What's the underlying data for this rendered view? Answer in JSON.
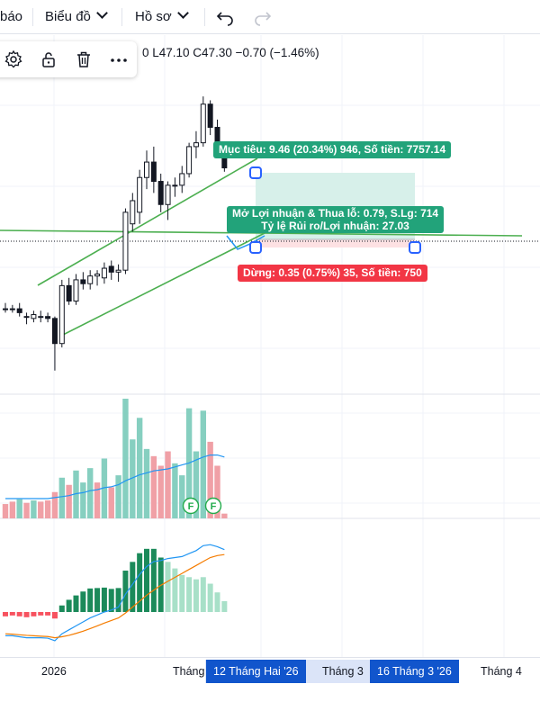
{
  "toolbar": {
    "left_partial": "báo",
    "chart_menu": "Biểu đồ",
    "profile_menu": "Hồ sơ",
    "undo_icon": "undo-icon",
    "redo_icon": "redo-icon"
  },
  "floating_toolbar": {
    "icons": [
      "gear-icon",
      "lock-icon",
      "trash-icon",
      "more-icon"
    ]
  },
  "ohlc": {
    "text": "0  L47.10  C47.30  −0.70 (−1.46%)"
  },
  "position_tool": {
    "target_label": "Mục tiêu: 9.46 (20.34%) 946, Số tiền: 7757.14",
    "pnl_line1": "Mở Lợi nhuận & Thua lỗ: 0.79, S.Lg: 714",
    "pnl_line2": "Tỷ lệ Rủi ro/Lợi nhuận: 27.03",
    "stop_label": "Dừng: 0.35 (0.75%) 35, Số tiền: 750",
    "colors": {
      "target": "#22a37a",
      "stop": "#f23645",
      "zone": "#d7f0ea",
      "handle": "#2962ff"
    }
  },
  "volume_badges": [
    "F",
    "F"
  ],
  "time_axis": {
    "labels": [
      "2026",
      "Tháng",
      "Tháng 3",
      "Tháng 4"
    ],
    "highlight_1": "12 Tháng Hai '26",
    "highlight_2": "16 Tháng 3 '26"
  },
  "chart_data": {
    "type": "candlestick",
    "colors": {
      "up": "#131722",
      "down": "#131722",
      "vol_up": "#86cfc0",
      "vol_down": "#f0a0a6",
      "ma": "#2196f3",
      "macd_signal": "#f57c00",
      "hist": "#1b8a5a"
    },
    "candles": [
      {
        "o": 40.0,
        "h": 40.3,
        "l": 39.8,
        "c": 40.0
      },
      {
        "o": 40.0,
        "h": 40.2,
        "l": 39.8,
        "c": 40.0
      },
      {
        "o": 40.0,
        "h": 40.3,
        "l": 39.6,
        "c": 39.8
      },
      {
        "o": 39.6,
        "h": 39.8,
        "l": 39.2,
        "c": 39.6
      },
      {
        "o": 39.5,
        "h": 39.9,
        "l": 39.3,
        "c": 39.7
      },
      {
        "o": 39.6,
        "h": 39.9,
        "l": 39.3,
        "c": 39.6
      },
      {
        "o": 39.6,
        "h": 39.8,
        "l": 39.3,
        "c": 39.5
      },
      {
        "o": 39.5,
        "h": 39.6,
        "l": 36.8,
        "c": 38.2
      },
      {
        "o": 38.2,
        "h": 41.5,
        "l": 38.0,
        "c": 41.2
      },
      {
        "o": 41.2,
        "h": 41.6,
        "l": 40.2,
        "c": 40.4
      },
      {
        "o": 40.4,
        "h": 41.8,
        "l": 40.2,
        "c": 41.5
      },
      {
        "o": 41.5,
        "h": 41.9,
        "l": 41.0,
        "c": 41.3
      },
      {
        "o": 41.3,
        "h": 42.0,
        "l": 41.0,
        "c": 41.7
      },
      {
        "o": 41.7,
        "h": 42.0,
        "l": 41.2,
        "c": 41.8
      },
      {
        "o": 41.6,
        "h": 42.4,
        "l": 41.3,
        "c": 42.1
      },
      {
        "o": 42.2,
        "h": 42.5,
        "l": 41.5,
        "c": 41.9
      },
      {
        "o": 41.9,
        "h": 42.3,
        "l": 41.4,
        "c": 42.0
      },
      {
        "o": 42.0,
        "h": 45.2,
        "l": 41.8,
        "c": 45.0
      },
      {
        "o": 44.4,
        "h": 46.0,
        "l": 44.0,
        "c": 45.6
      },
      {
        "o": 45.0,
        "h": 47.2,
        "l": 44.4,
        "c": 46.8
      },
      {
        "o": 46.8,
        "h": 48.2,
        "l": 46.2,
        "c": 47.6
      },
      {
        "o": 47.6,
        "h": 48.4,
        "l": 46.0,
        "c": 46.6
      },
      {
        "o": 46.6,
        "h": 47.0,
        "l": 45.0,
        "c": 45.4
      },
      {
        "o": 45.4,
        "h": 46.6,
        "l": 44.6,
        "c": 46.4
      },
      {
        "o": 46.4,
        "h": 46.8,
        "l": 45.8,
        "c": 46.4
      },
      {
        "o": 46.4,
        "h": 47.4,
        "l": 46.0,
        "c": 47.0
      },
      {
        "o": 47.0,
        "h": 48.6,
        "l": 46.8,
        "c": 48.4
      },
      {
        "o": 48.4,
        "h": 49.2,
        "l": 47.8,
        "c": 48.6
      },
      {
        "o": 48.6,
        "h": 51.0,
        "l": 48.4,
        "c": 50.6
      },
      {
        "o": 50.6,
        "h": 50.8,
        "l": 49.0,
        "c": 49.4
      },
      {
        "o": 49.4,
        "h": 49.8,
        "l": 48.0,
        "c": 48.2
      },
      {
        "o": 48.0,
        "h": 48.2,
        "l": 47.1,
        "c": 47.3
      }
    ],
    "volume": [
      {
        "v": 12,
        "up": false
      },
      {
        "v": 14,
        "up": false
      },
      {
        "v": 16,
        "up": true
      },
      {
        "v": 13,
        "up": false
      },
      {
        "v": 15,
        "up": true
      },
      {
        "v": 14,
        "up": false
      },
      {
        "v": 15,
        "up": false
      },
      {
        "v": 22,
        "up": false
      },
      {
        "v": 34,
        "up": true
      },
      {
        "v": 28,
        "up": false
      },
      {
        "v": 40,
        "up": true
      },
      {
        "v": 30,
        "up": true
      },
      {
        "v": 42,
        "up": true
      },
      {
        "v": 30,
        "up": false
      },
      {
        "v": 50,
        "up": true
      },
      {
        "v": 26,
        "up": false
      },
      {
        "v": 36,
        "up": true
      },
      {
        "v": 100,
        "up": true
      },
      {
        "v": 66,
        "up": true
      },
      {
        "v": 84,
        "up": true
      },
      {
        "v": 58,
        "up": true
      },
      {
        "v": 52,
        "up": false
      },
      {
        "v": 44,
        "up": false
      },
      {
        "v": 56,
        "up": false
      },
      {
        "v": 46,
        "up": true
      },
      {
        "v": 36,
        "up": true
      },
      {
        "v": 92,
        "up": true
      },
      {
        "v": 56,
        "up": true
      },
      {
        "v": 90,
        "up": true
      },
      {
        "v": 64,
        "up": false
      },
      {
        "v": 44,
        "up": false
      },
      {
        "v": 4,
        "up": false
      }
    ],
    "volume_ma": [
      20,
      20,
      20,
      20,
      20,
      20,
      20,
      21,
      22,
      23,
      25,
      26,
      28,
      29,
      31,
      32,
      34,
      38,
      41,
      44,
      46,
      48,
      49,
      50,
      52,
      54,
      56,
      59,
      62,
      64,
      64,
      62
    ],
    "macd": [
      -1.2,
      -1.2,
      -1.25,
      -1.3,
      -1.3,
      -1.3,
      -1.32,
      -1.45,
      -1.1,
      -0.9,
      -0.7,
      -0.5,
      -0.3,
      -0.15,
      0.0,
      0.1,
      0.25,
      0.9,
      1.4,
      1.9,
      2.3,
      2.55,
      2.6,
      2.7,
      2.75,
      2.8,
      2.95,
      3.1,
      3.35,
      3.4,
      3.3,
      3.15
    ],
    "signal": [
      -1.1,
      -1.12,
      -1.15,
      -1.18,
      -1.2,
      -1.22,
      -1.24,
      -1.3,
      -1.25,
      -1.18,
      -1.08,
      -0.97,
      -0.84,
      -0.7,
      -0.56,
      -0.43,
      -0.3,
      -0.05,
      0.25,
      0.55,
      0.85,
      1.1,
      1.35,
      1.55,
      1.75,
      1.95,
      2.15,
      2.35,
      2.55,
      2.75,
      2.85,
      2.9
    ],
    "hist_up": [
      false,
      false,
      false,
      false,
      false,
      false,
      false,
      false,
      true,
      true,
      true,
      true,
      true,
      true,
      true,
      true,
      true,
      true,
      true,
      true,
      true,
      true,
      true,
      true,
      true,
      true,
      true,
      true,
      true,
      true,
      true,
      true
    ]
  }
}
